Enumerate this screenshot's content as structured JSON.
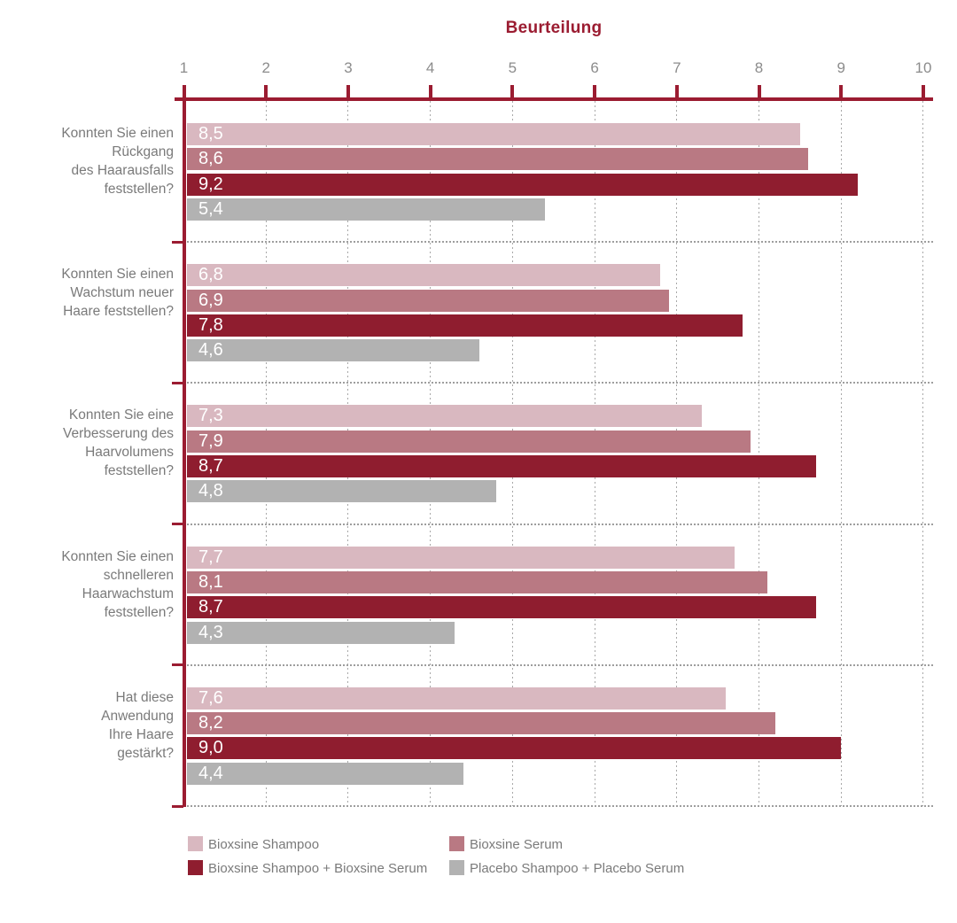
{
  "chart_data": {
    "type": "bar",
    "orientation": "horizontal",
    "title": "Beurteilung",
    "value_axis": {
      "min": 1,
      "max": 10,
      "ticks": [
        "1",
        "2",
        "3",
        "4",
        "5",
        "6",
        "7",
        "8",
        "9",
        "10"
      ],
      "position": "top",
      "grid": true
    },
    "categories": [
      {
        "lines": [
          "Konnten Sie einen",
          "Rückgang",
          "des Haarausfalls",
          "feststellen?"
        ]
      },
      {
        "lines": [
          "Konnten Sie einen",
          "Wachstum neuer",
          "Haare feststellen?"
        ]
      },
      {
        "lines": [
          "Konnten Sie eine",
          "Verbesserung des",
          "Haarvolumens",
          "feststellen?"
        ]
      },
      {
        "lines": [
          "Konnten Sie einen",
          "schnelleren",
          "Haarwachstum",
          "feststellen?"
        ]
      },
      {
        "lines": [
          "Hat diese",
          "Anwendung",
          "Ihre Haare",
          "gestärkt?"
        ]
      }
    ],
    "series": [
      {
        "name": "Bioxsine Shampoo",
        "color": "#d9b8c0",
        "values": [
          8.5,
          6.8,
          7.3,
          7.7,
          7.6
        ],
        "labels": [
          "8,5",
          "6,8",
          "7,3",
          "7,7",
          "7,6"
        ]
      },
      {
        "name": "Bioxsine Serum",
        "color": "#b97983",
        "values": [
          8.6,
          6.9,
          7.9,
          8.1,
          8.2
        ],
        "labels": [
          "8,6",
          "6,9",
          "7,9",
          "8,1",
          "8,2"
        ]
      },
      {
        "name": "Bioxsine Shampoo + Bioxsine Serum",
        "color": "#8f1d2f",
        "values": [
          9.2,
          7.8,
          8.7,
          8.7,
          9.0
        ],
        "labels": [
          "9,2",
          "7,8",
          "8,7",
          "8,7",
          "9,0"
        ]
      },
      {
        "name": "Placebo Shampoo + Placebo Serum",
        "color": "#b2b2b2",
        "values": [
          5.4,
          4.6,
          4.8,
          4.3,
          4.4
        ],
        "labels": [
          "5,4",
          "4,6",
          "4,8",
          "4,3",
          "4,4"
        ]
      }
    ],
    "legend": {
      "position": "bottom",
      "columns": 2
    },
    "colors": {
      "axis": "#9b1c31",
      "title": "#9b1c31",
      "tick_label": "#8c8c8c",
      "category_label": "#7a7a7a",
      "legend_label": "#7a7a7a",
      "grid": "#a8a8a8",
      "value_label": "#ffffff",
      "background": "#ffffff"
    }
  }
}
